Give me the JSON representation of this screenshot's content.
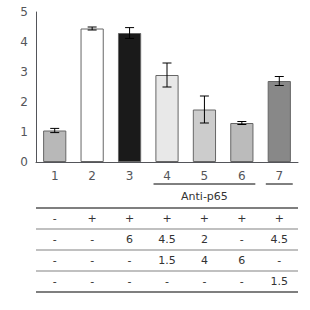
{
  "chart_data": {
    "type": "bar",
    "categories": [
      "1",
      "2",
      "3",
      "4",
      "5",
      "6",
      "7"
    ],
    "values": [
      1.05,
      4.45,
      4.3,
      2.9,
      1.75,
      1.3,
      2.7
    ],
    "errors": [
      0.07,
      0.05,
      0.18,
      0.4,
      0.45,
      0.05,
      0.15
    ],
    "colors": [
      "#b8b8b8",
      "#ffffff",
      "#1a1a1a",
      "#e8e8e8",
      "#cccccc",
      "#bbbbbb",
      "#888888"
    ],
    "ylim": [
      0,
      5
    ],
    "yticks": [
      0,
      1,
      2,
      3,
      4,
      5
    ],
    "grid": false,
    "annotations": [
      {
        "text": "Anti-p65",
        "from": "4",
        "to": "6"
      }
    ],
    "underlines": [
      [
        "4",
        "6"
      ],
      [
        "7",
        "7"
      ]
    ],
    "table": [
      [
        "-",
        "+",
        "+",
        "+",
        "+",
        "+",
        "+"
      ],
      [
        "-",
        "-",
        "6",
        "4.5",
        "2",
        "-",
        "4.5"
      ],
      [
        "-",
        "-",
        "-",
        "1.5",
        "4",
        "6",
        "-"
      ],
      [
        "-",
        "-",
        "-",
        "-",
        "-",
        "-",
        "1.5"
      ]
    ]
  }
}
